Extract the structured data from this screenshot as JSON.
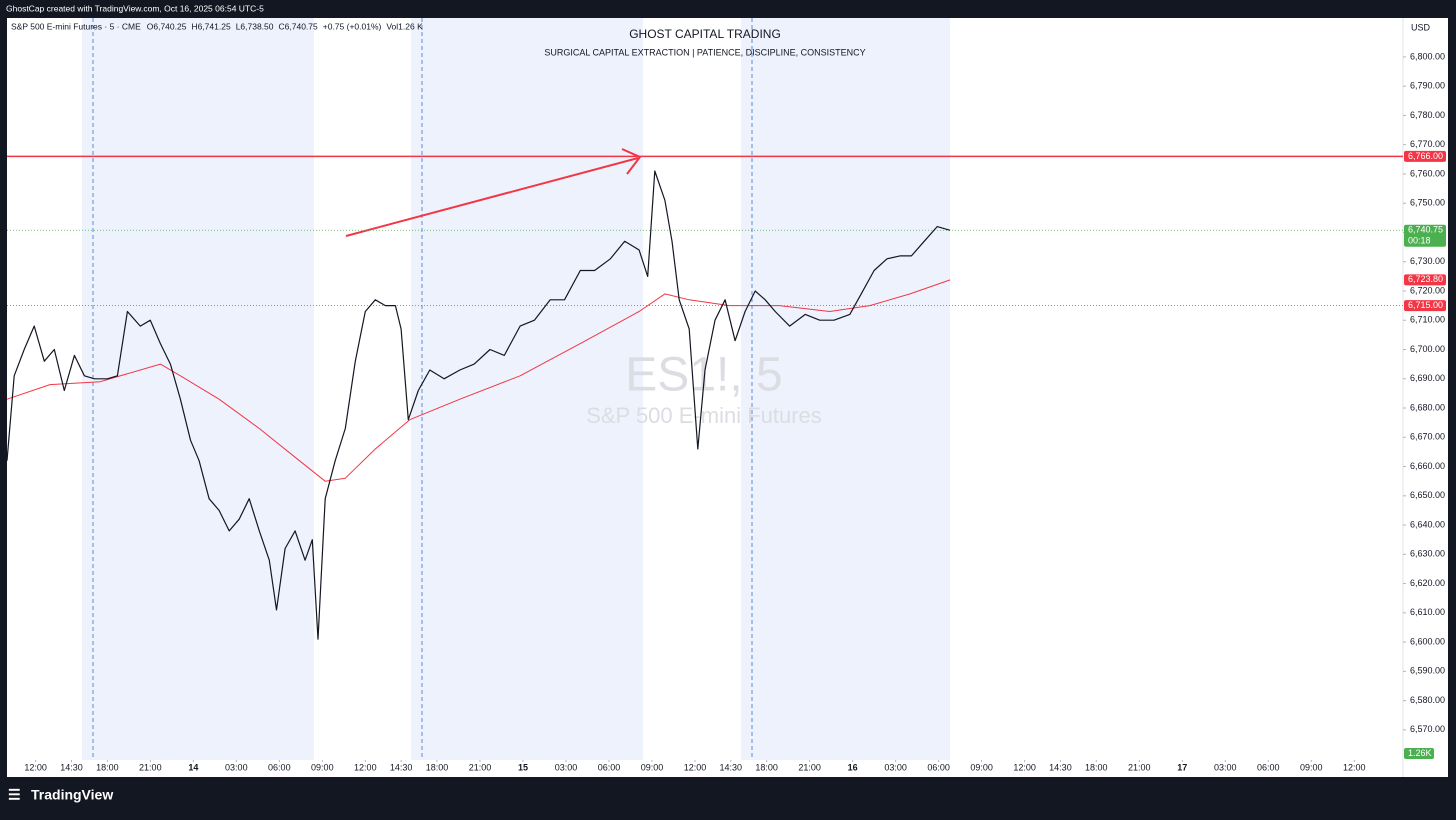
{
  "chart_data": {
    "type": "line",
    "credit": "GhostCap created with TradingView.com, Oct 16, 2025 06:54 UTC-5",
    "symbol": "S&P 500 E-mini Futures · 5 · CME",
    "ohlc": [
      "O6,740.25",
      "H6,741.25",
      "L6,738.50",
      "C6,740.75",
      "+0.75 (+0.01%)",
      "Vol1.26 K"
    ],
    "title": "GHOST CAPITAL TRADING",
    "subtitle": "SURGICAL CAPITAL EXTRACTION |  PATIENCE, DISCIPLINE, CONSISTENCY",
    "watermark": [
      "ES1!, 5",
      "S&P 500 E-mini Futures"
    ],
    "currency": "USD",
    "brand": "TradingView",
    "ylim": [
      6559.7,
      6813.3
    ],
    "yticks": [
      {
        "value": 6570,
        "label": "6,570.00"
      },
      {
        "value": 6580,
        "label": "6,580.00"
      },
      {
        "value": 6590,
        "label": "6,590.00"
      },
      {
        "value": 6600,
        "label": "6,600.00"
      },
      {
        "value": 6610,
        "label": "6,610.00"
      },
      {
        "value": 6620,
        "label": "6,620.00"
      },
      {
        "value": 6630,
        "label": "6,630.00"
      },
      {
        "value": 6640,
        "label": "6,640.00"
      },
      {
        "value": 6650,
        "label": "6,650.00"
      },
      {
        "value": 6660,
        "label": "6,660.00"
      },
      {
        "value": 6670,
        "label": "6,670.00"
      },
      {
        "value": 6680,
        "label": "6,680.00"
      },
      {
        "value": 6690,
        "label": "6,690.00"
      },
      {
        "value": 6700,
        "label": "6,700.00"
      },
      {
        "value": 6710,
        "label": "6,710.00"
      },
      {
        "value": 6720,
        "label": "6,720.00"
      },
      {
        "value": 6730,
        "label": "6,730.00"
      },
      {
        "value": 6740,
        "label": "6,740.00"
      },
      {
        "value": 6750,
        "label": "6,750.00"
      },
      {
        "value": 6760,
        "label": "6,760.00"
      },
      {
        "value": 6770,
        "label": "6,770.00"
      },
      {
        "value": 6780,
        "label": "6,780.00"
      },
      {
        "value": 6790,
        "label": "6,790.00"
      },
      {
        "value": 6800,
        "label": "6,800.00"
      }
    ],
    "xlim": [
      -2.0,
      95.4
    ],
    "xticks": [
      {
        "value": 0,
        "label": "12:00"
      },
      {
        "value": 2.5,
        "label": "14:30"
      },
      {
        "value": 5,
        "label": "18:00"
      },
      {
        "value": 8,
        "label": "21:00"
      },
      {
        "value": 11,
        "label": "14"
      },
      {
        "value": 14,
        "label": "03:00"
      },
      {
        "value": 17,
        "label": "06:00"
      },
      {
        "value": 20,
        "label": "09:00"
      },
      {
        "value": 23,
        "label": "12:00"
      },
      {
        "value": 25.5,
        "label": "14:30"
      },
      {
        "value": 28,
        "label": "18:00"
      },
      {
        "value": 31,
        "label": "21:00"
      },
      {
        "value": 34,
        "label": "15"
      },
      {
        "value": 37,
        "label": "03:00"
      },
      {
        "value": 40,
        "label": "06:00"
      },
      {
        "value": 43,
        "label": "09:00"
      },
      {
        "value": 46,
        "label": "12:00"
      },
      {
        "value": 48.5,
        "label": "14:30"
      },
      {
        "value": 51,
        "label": "18:00"
      },
      {
        "value": 54,
        "label": "21:00"
      },
      {
        "value": 57,
        "label": "16"
      },
      {
        "value": 60,
        "label": "03:00"
      },
      {
        "value": 63,
        "label": "06:00"
      },
      {
        "value": 66,
        "label": "09:00"
      },
      {
        "value": 69,
        "label": "12:00"
      },
      {
        "value": 71.5,
        "label": "14:30"
      },
      {
        "value": 74,
        "label": "18:00"
      },
      {
        "value": 77,
        "label": "21:00"
      },
      {
        "value": 80,
        "label": "17"
      },
      {
        "value": 83,
        "label": "03:00"
      },
      {
        "value": 86,
        "label": "06:00"
      },
      {
        "value": 89,
        "label": "09:00"
      },
      {
        "value": 92,
        "label": "12:00"
      }
    ],
    "price": {
      "color": "#131722",
      "x": [
        -2.0,
        -1.5,
        -0.8,
        -0.1,
        0.6,
        1.3,
        2.0,
        2.7,
        3.4,
        4.1,
        5.0,
        5.7,
        6.4,
        7.3,
        8.0,
        8.7,
        9.4,
        10.1,
        10.8,
        11.4,
        12.1,
        12.8,
        13.5,
        14.2,
        14.9,
        15.6,
        16.3,
        16.8,
        17.4,
        18.1,
        18.8,
        19.3,
        19.7,
        20.2,
        20.9,
        21.6,
        22.3,
        23.0,
        23.7,
        24.4,
        25.1,
        25.5,
        26.0,
        26.7,
        27.5,
        28.5,
        29.6,
        30.6,
        31.7,
        32.7,
        33.8,
        34.8,
        35.9,
        36.9,
        38.0,
        39.0,
        40.1,
        41.1,
        42.1,
        42.7,
        43.2,
        43.9,
        44.4,
        44.9,
        45.6,
        46.2,
        46.7,
        47.4,
        48.1,
        48.8,
        49.5,
        50.2,
        50.9,
        51.6,
        52.6,
        53.7,
        54.7,
        55.7,
        56.8,
        57.6,
        58.5,
        59.4,
        60.3,
        61.1,
        62.0,
        62.9,
        63.8
      ],
      "values": [
        6662,
        6691,
        6700,
        6708,
        6696,
        6700,
        6686,
        6698,
        6691,
        6690,
        6690,
        6691,
        6713,
        6708,
        6710,
        6702,
        6695,
        6683,
        6669,
        6662,
        6649,
        6645,
        6638,
        6642,
        6649,
        6638,
        6628,
        6611,
        6632,
        6638,
        6628,
        6635,
        6601,
        6649,
        6662,
        6673,
        6696,
        6713,
        6717,
        6715,
        6715,
        6707,
        6676,
        6686,
        6693,
        6690,
        6693,
        6695,
        6700,
        6698,
        6708,
        6710,
        6717,
        6717,
        6727,
        6727,
        6731,
        6737,
        6734,
        6725,
        6761,
        6751,
        6737,
        6717,
        6707,
        6666,
        6693,
        6710,
        6717,
        6703,
        6713,
        6720,
        6717,
        6713,
        6708,
        6712,
        6710,
        6710,
        6712,
        6719,
        6727,
        6731,
        6732,
        6732,
        6737,
        6742,
        6740.75
      ]
    },
    "ma": {
      "color": "#f23645",
      "x": [
        -2.0,
        1.0,
        4.5,
        8.7,
        10.1,
        12.8,
        15.6,
        18.4,
        20.2,
        21.6,
        23.7,
        26.1,
        29.6,
        33.8,
        38.0,
        42.1,
        43.9,
        45.6,
        48.4,
        51.9,
        55.4,
        58.2,
        61.0,
        63.8
      ],
      "values": [
        6683,
        6688,
        6689,
        6695,
        6691,
        6683,
        6673,
        6662,
        6655,
        6656,
        6666,
        6676,
        6683,
        6691,
        6702,
        6713,
        6719,
        6717,
        6715,
        6715,
        6713,
        6715,
        6719,
        6723.8
      ]
    },
    "levels": [
      {
        "value": 6766,
        "label": "6,766.00",
        "color": "#f23645",
        "style": "solid"
      },
      {
        "value": 6740.75,
        "label": "6,740.75",
        "sub": "00:18",
        "color": "#4caf50",
        "style": "dotted"
      },
      {
        "value": 6723.8,
        "label": "6,723.80",
        "color": "#f23645",
        "style": "none"
      },
      {
        "value": 6715,
        "label": "6,715.00",
        "color": "#f23645",
        "style": "dotted"
      }
    ],
    "volume_label": "1.26K"
  }
}
